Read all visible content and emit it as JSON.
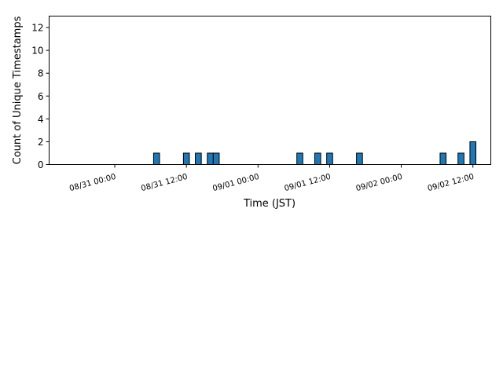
{
  "chart_data": {
    "type": "bar",
    "xlabel": "Time (JST)",
    "ylabel": "Count of Unique Timestamps",
    "title": "",
    "ylim": [
      0,
      13
    ],
    "xlim": [
      "08/30 13:00",
      "09/02 15:00"
    ],
    "bar_width_hours": 1,
    "bar_color": "#1f77b4",
    "edge_color": "#000000",
    "y_ticks": [
      0,
      2,
      4,
      6,
      8,
      10,
      12
    ],
    "x_ticks": [
      {
        "label": "08/31 00:00",
        "t": "2024-08-31T00:00"
      },
      {
        "label": "08/31 12:00",
        "t": "2024-08-31T12:00"
      },
      {
        "label": "09/01 00:00",
        "t": "2024-09-01T00:00"
      },
      {
        "label": "09/01 12:00",
        "t": "2024-09-01T12:00"
      },
      {
        "label": "09/02 00:00",
        "t": "2024-09-02T00:00"
      },
      {
        "label": "09/02 12:00",
        "t": "2024-09-02T12:00"
      }
    ],
    "bars": [
      {
        "t": "2024-08-31T07:00",
        "value": 1
      },
      {
        "t": "2024-08-31T12:00",
        "value": 1
      },
      {
        "t": "2024-08-31T14:00",
        "value": 1
      },
      {
        "t": "2024-08-31T16:00",
        "value": 1
      },
      {
        "t": "2024-08-31T17:00",
        "value": 1
      },
      {
        "t": "2024-09-01T07:00",
        "value": 1
      },
      {
        "t": "2024-09-01T10:00",
        "value": 1
      },
      {
        "t": "2024-09-01T12:00",
        "value": 1
      },
      {
        "t": "2024-09-01T17:00",
        "value": 1
      },
      {
        "t": "2024-09-02T07:00",
        "value": 1
      },
      {
        "t": "2024-09-02T10:00",
        "value": 1
      },
      {
        "t": "2024-09-02T12:00",
        "value": 2
      }
    ]
  }
}
